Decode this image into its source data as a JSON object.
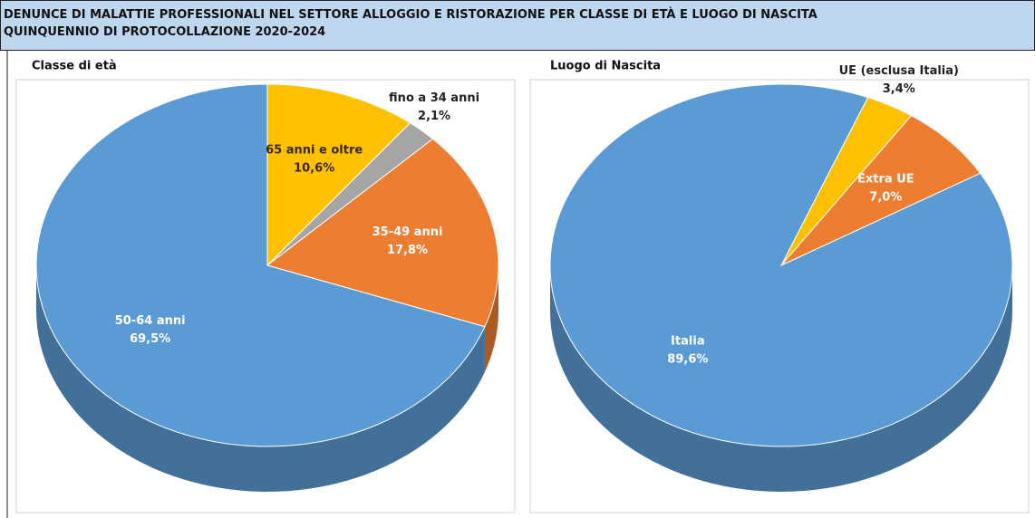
{
  "header": {
    "lines": [
      "DENUNCE DI MALATTIE PROFESSIONALI NEL SETTORE ALLOGGIO E RISTORAZIONE PER CLASSE DI ETÀ E LUOGO DI NASCITA",
      "QUINQUENNIO DI PROTOCOLLAZIONE 2020-2024"
    ]
  },
  "chart_data": [
    {
      "type": "pie",
      "title": "Classe di età",
      "categories": [
        "65 anni e oltre",
        "fino a 34 anni",
        "35-49 anni",
        "50-64 anni"
      ],
      "values": [
        10.6,
        2.1,
        17.8,
        69.5
      ],
      "value_labels": [
        "10,6%",
        "2,1%",
        "17,8%",
        "69,5%"
      ],
      "colors": [
        "#ffc000",
        "#a5a5a5",
        "#ed7d31",
        "#5b9bd5"
      ]
    },
    {
      "type": "pie",
      "title": "Luogo di Nascita",
      "categories": [
        "UE (esclusa Italia)",
        "Extra UE",
        "Italia"
      ],
      "values": [
        3.4,
        7.0,
        89.6
      ],
      "value_labels": [
        "3,4%",
        "7,0%",
        "89,6%"
      ],
      "colors": [
        "#ffc000",
        "#ed7d31",
        "#5b9bd5"
      ]
    }
  ]
}
